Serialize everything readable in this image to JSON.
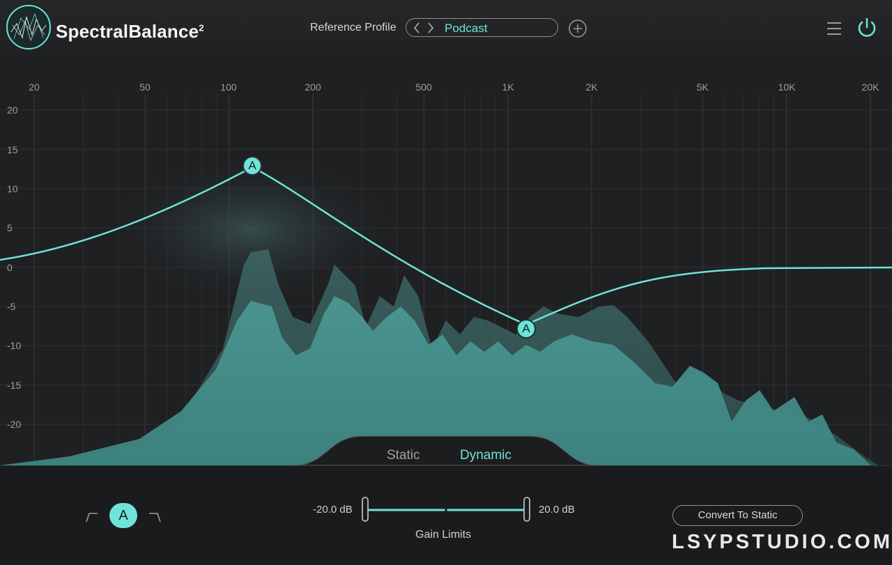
{
  "header": {
    "app_title": "SpectralBalance",
    "app_title_sup": "2",
    "reference_label": "Reference Profile",
    "profile_value": "Podcast",
    "icons": [
      "logo-mark",
      "chevron-left-icon",
      "chevron-right-icon",
      "plus-circle-icon",
      "menu-icon",
      "power-icon"
    ]
  },
  "graph": {
    "freq_labels": [
      "20",
      "50",
      "100",
      "200",
      "500",
      "1K",
      "2K",
      "5K",
      "10K",
      "20K"
    ],
    "db_labels": [
      "20",
      "15",
      "10",
      "5",
      "0",
      "-5",
      "-10",
      "-15",
      "-20"
    ],
    "nodes": [
      {
        "label": "A",
        "freq_hz": 120,
        "gain_db": 12.5
      },
      {
        "label": "A",
        "freq_hz": 1200,
        "gain_db": -7.7
      }
    ],
    "accent": "#6fe3d9"
  },
  "modes": {
    "static": "Static",
    "dynamic": "Dynamic",
    "active": "Dynamic"
  },
  "bottom": {
    "band_label": "A",
    "gain_min": "-20.0 dB",
    "gain_max": "20.0 dB",
    "gain_title": "Gain Limits",
    "convert_label": "Convert To Static"
  },
  "watermark": "LSYPSTUDIO.COM"
}
